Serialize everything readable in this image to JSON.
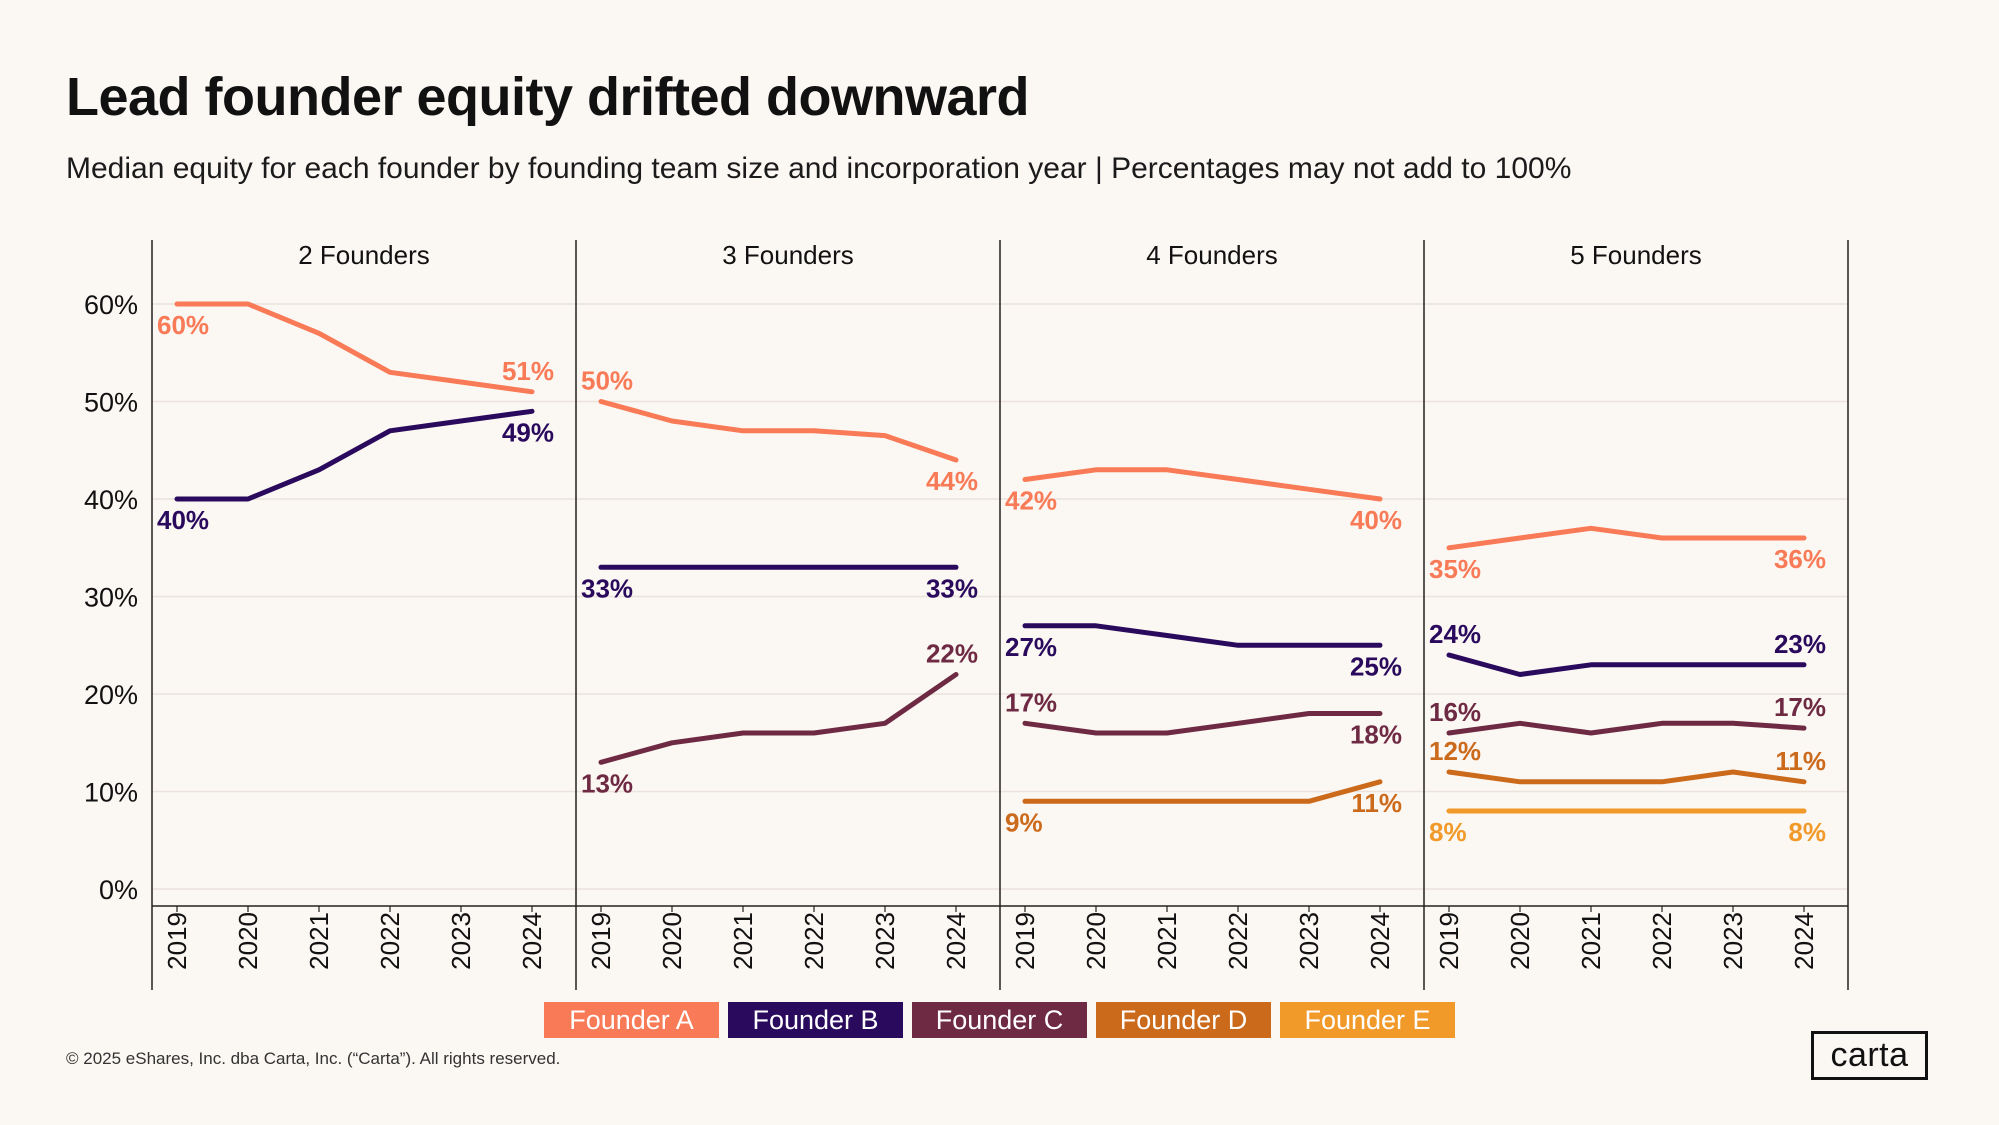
{
  "header": {
    "title": "Lead founder equity drifted downward",
    "subtitle": "Median equity for each founder by founding team size and incorporation year | Percentages may not add to 100%"
  },
  "footer": {
    "copyright": "© 2025 eShares, Inc. dba Carta, Inc. (“Carta”). All rights reserved.",
    "logo_text": "carta"
  },
  "legend": [
    {
      "name": "Founder A",
      "color": "#f97a56"
    },
    {
      "name": "Founder B",
      "color": "#2a0a5c"
    },
    {
      "name": "Founder C",
      "color": "#6e2a43"
    },
    {
      "name": "Founder D",
      "color": "#cc6a1c"
    },
    {
      "name": "Founder E",
      "color": "#f19a2a"
    }
  ],
  "chart_data": {
    "type": "line",
    "title": "Lead founder equity drifted downward",
    "subtitle": "Median equity for each founder by founding team size and incorporation year | Percentages may not add to 100%",
    "x": [
      "2019",
      "2020",
      "2021",
      "2022",
      "2023",
      "2024"
    ],
    "y_ticks": [
      "0%",
      "10%",
      "20%",
      "30%",
      "40%",
      "50%",
      "60%"
    ],
    "ylim": [
      0,
      60
    ],
    "grid": true,
    "legend_placement": "bottom",
    "panels": [
      {
        "label": "2 Founders",
        "series": [
          {
            "name": "Founder A",
            "color": "#f97a56",
            "values": [
              60,
              60,
              57,
              53,
              52,
              51
            ],
            "start_label": "60%",
            "end_label": "51%",
            "start_pos": "below",
            "end_pos": "above"
          },
          {
            "name": "Founder B",
            "color": "#2a0a5c",
            "values": [
              40,
              40,
              43,
              47,
              48,
              49
            ],
            "start_label": "40%",
            "end_label": "49%",
            "start_pos": "below",
            "end_pos": "below"
          }
        ]
      },
      {
        "label": "3 Founders",
        "series": [
          {
            "name": "Founder A",
            "color": "#f97a56",
            "values": [
              50,
              48,
              47,
              47,
              46.5,
              44
            ],
            "start_label": "50%",
            "end_label": "44%",
            "start_pos": "above",
            "end_pos": "below"
          },
          {
            "name": "Founder B",
            "color": "#2a0a5c",
            "values": [
              33,
              33,
              33,
              33,
              33,
              33
            ],
            "start_label": "33%",
            "end_label": "33%",
            "start_pos": "below",
            "end_pos": "below"
          },
          {
            "name": "Founder C",
            "color": "#6e2a43",
            "values": [
              13,
              15,
              16,
              16,
              17,
              22
            ],
            "start_label": "13%",
            "end_label": "22%",
            "start_pos": "below",
            "end_pos": "above"
          }
        ]
      },
      {
        "label": "4 Founders",
        "series": [
          {
            "name": "Founder A",
            "color": "#f97a56",
            "values": [
              42,
              43,
              43,
              42,
              41,
              40
            ],
            "start_label": "42%",
            "end_label": "40%",
            "start_pos": "below",
            "end_pos": "below"
          },
          {
            "name": "Founder B",
            "color": "#2a0a5c",
            "values": [
              27,
              27,
              26,
              25,
              25,
              25
            ],
            "start_label": "27%",
            "end_label": "25%",
            "start_pos": "below",
            "end_pos": "below"
          },
          {
            "name": "Founder C",
            "color": "#6e2a43",
            "values": [
              17,
              16,
              16,
              17,
              18,
              18
            ],
            "start_label": "17%",
            "end_label": "18%",
            "start_pos": "above",
            "end_pos": "below"
          },
          {
            "name": "Founder D",
            "color": "#cc6a1c",
            "values": [
              9,
              9,
              9,
              9,
              9,
              11
            ],
            "start_label": "9%",
            "end_label": "11%",
            "start_pos": "below",
            "end_pos": "below"
          }
        ]
      },
      {
        "label": "5 Founders",
        "series": [
          {
            "name": "Founder A",
            "color": "#f97a56",
            "values": [
              35,
              36,
              37,
              36,
              36,
              36
            ],
            "start_label": "35%",
            "end_label": "36%",
            "start_pos": "below",
            "end_pos": "below"
          },
          {
            "name": "Founder B",
            "color": "#2a0a5c",
            "values": [
              24,
              22,
              23,
              23,
              23,
              23
            ],
            "start_label": "24%",
            "end_label": "23%",
            "start_pos": "above",
            "end_pos": "above"
          },
          {
            "name": "Founder C",
            "color": "#6e2a43",
            "values": [
              16,
              17,
              16,
              17,
              17,
              16.5
            ],
            "start_label": "16%",
            "end_label": "17%",
            "start_pos": "above",
            "end_pos": "above"
          },
          {
            "name": "Founder D",
            "color": "#cc6a1c",
            "values": [
              12,
              11,
              11,
              11,
              12,
              11
            ],
            "start_label": "12%",
            "end_label": "11%",
            "start_pos": "above",
            "end_pos": "above"
          },
          {
            "name": "Founder E",
            "color": "#f19a2a",
            "values": [
              8,
              8,
              8,
              8,
              8,
              8
            ],
            "start_label": "8%",
            "end_label": "8%",
            "start_pos": "below",
            "end_pos": "below"
          }
        ]
      }
    ]
  }
}
